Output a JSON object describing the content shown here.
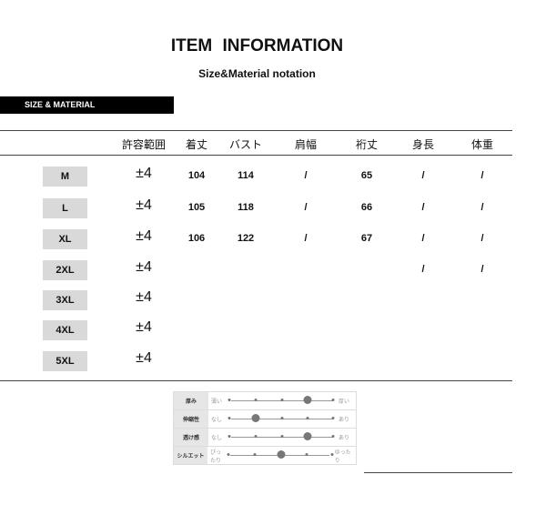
{
  "title": "ITEM  INFORMATION",
  "subtitle": "Size&Material notation",
  "section": "SIZE & MATERIAL",
  "headers": [
    "許容範囲",
    "着丈",
    "バスト",
    "肩幅",
    "裄丈",
    "身長",
    "体重"
  ],
  "rows": [
    {
      "size": "M",
      "tol": "±4",
      "vals": [
        "104",
        "114",
        "/",
        "65",
        "/",
        "/"
      ]
    },
    {
      "size": "L",
      "tol": "±4",
      "vals": [
        "105",
        "118",
        "/",
        "66",
        "/",
        "/"
      ]
    },
    {
      "size": "XL",
      "tol": "±4",
      "vals": [
        "106",
        "122",
        "/",
        "67",
        "/",
        "/"
      ]
    },
    {
      "size": "2XL",
      "tol": "±4",
      "vals": [
        "",
        "",
        "",
        "",
        "/",
        "/"
      ]
    },
    {
      "size": "3XL",
      "tol": "±4",
      "vals": [
        "",
        "",
        "",
        "",
        "",
        ""
      ]
    },
    {
      "size": "4XL",
      "tol": "±4",
      "vals": [
        "",
        "",
        "",
        "",
        "",
        ""
      ]
    },
    {
      "size": "5XL",
      "tol": "±4",
      "vals": [
        "",
        "",
        "",
        "",
        "",
        ""
      ]
    }
  ],
  "material": [
    {
      "label": "厚み",
      "left": "薄い",
      "right": "厚い",
      "level": 4
    },
    {
      "label": "伸縮性",
      "left": "なし",
      "right": "あり",
      "level": 2
    },
    {
      "label": "透け感",
      "left": "なし",
      "right": "あり",
      "level": 4
    },
    {
      "label": "シルエット",
      "left": "ぴったり",
      "right": "ゆったり",
      "level": 3
    }
  ]
}
